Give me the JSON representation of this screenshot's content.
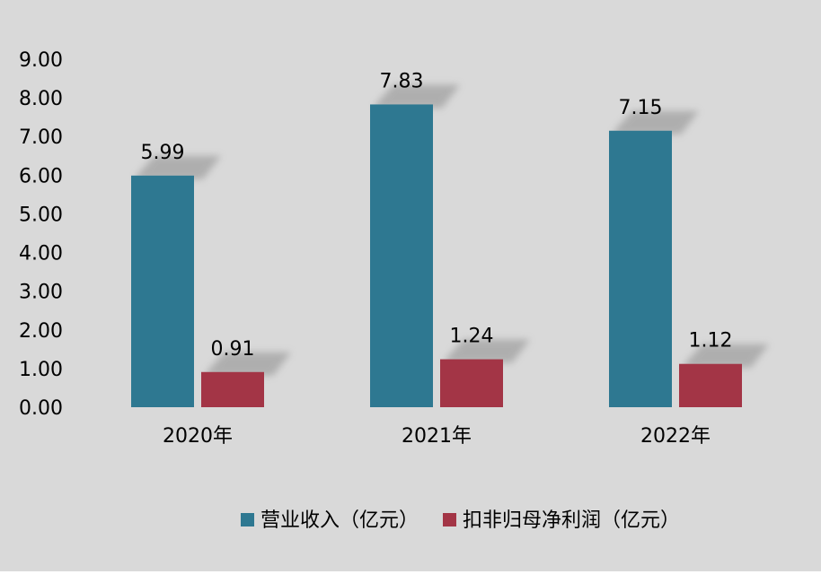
{
  "chart_data": {
    "type": "bar",
    "categories": [
      "2020年",
      "2021年",
      "2022年"
    ],
    "series": [
      {
        "name": "营业收入（亿元）",
        "values": [
          5.99,
          7.83,
          7.15
        ],
        "labels": [
          "5.99",
          "7.83",
          "7.15"
        ],
        "color": "#2e7891"
      },
      {
        "name": "扣非归母净利润（亿元）",
        "values": [
          0.91,
          1.24,
          1.12
        ],
        "labels": [
          "0.91",
          "1.24",
          "1.12"
        ],
        "color": "#a33546"
      }
    ],
    "y_ticks": [
      "0.00",
      "1.00",
      "2.00",
      "3.00",
      "4.00",
      "5.00",
      "6.00",
      "7.00",
      "8.00",
      "9.00"
    ],
    "ylim": [
      0,
      9
    ],
    "grid": false,
    "legend_position": "bottom",
    "background": "#d9d9d9"
  }
}
